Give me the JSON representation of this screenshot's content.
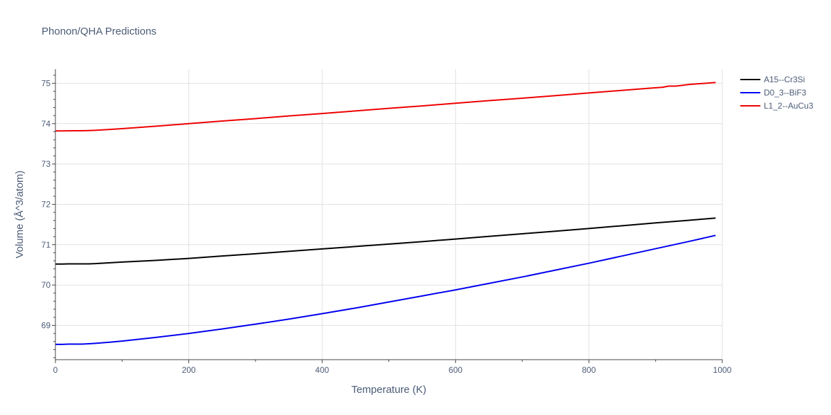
{
  "chart_data": {
    "type": "line",
    "title": "Phonon/QHA Predictions",
    "xlabel": "Temperature (K)",
    "ylabel": "Volume (Å^3/atom)",
    "xlim": [
      0,
      1000
    ],
    "ylim": [
      68.15,
      75.35
    ],
    "x_ticks": [
      0,
      200,
      400,
      600,
      800,
      1000
    ],
    "y_ticks": [
      69,
      70,
      71,
      72,
      73,
      74,
      75
    ],
    "grid": true,
    "legend_position": "top-right",
    "series": [
      {
        "name": "A15--Cr3Si",
        "color": "#000000",
        "x": [
          0,
          10,
          20,
          30,
          40,
          50,
          60,
          80,
          100,
          150,
          200,
          250,
          300,
          350,
          400,
          450,
          500,
          550,
          600,
          650,
          700,
          750,
          800,
          850,
          900,
          950,
          990
        ],
        "y": [
          70.52,
          70.52,
          70.525,
          70.525,
          70.525,
          70.525,
          70.53,
          70.55,
          70.57,
          70.61,
          70.66,
          70.72,
          70.775,
          70.835,
          70.895,
          70.955,
          71.015,
          71.075,
          71.14,
          71.205,
          71.27,
          71.335,
          71.4,
          71.47,
          71.54,
          71.605,
          71.66
        ]
      },
      {
        "name": "D0_3--BiF3",
        "color": "#0000ee",
        "x": [
          0,
          10,
          20,
          30,
          40,
          50,
          60,
          80,
          100,
          150,
          200,
          250,
          300,
          350,
          400,
          450,
          500,
          550,
          600,
          650,
          700,
          750,
          800,
          850,
          900,
          950,
          990
        ],
        "y": [
          68.53,
          68.53,
          68.535,
          68.535,
          68.535,
          68.545,
          68.555,
          68.58,
          68.61,
          68.7,
          68.8,
          68.91,
          69.03,
          69.155,
          69.29,
          69.43,
          69.58,
          69.73,
          69.88,
          70.04,
          70.2,
          70.37,
          70.54,
          70.72,
          70.9,
          71.08,
          71.23
        ]
      },
      {
        "name": "L1_2--AuCu3",
        "color": "#ee0000",
        "x": [
          0,
          10,
          20,
          30,
          40,
          50,
          60,
          80,
          100,
          150,
          200,
          250,
          300,
          350,
          400,
          450,
          500,
          550,
          600,
          650,
          700,
          750,
          800,
          850,
          900,
          910,
          920,
          930,
          940,
          950,
          990
        ],
        "y": [
          73.82,
          73.82,
          73.822,
          73.825,
          73.825,
          73.828,
          73.835,
          73.855,
          73.875,
          73.935,
          74.0,
          74.065,
          74.125,
          74.19,
          74.25,
          74.315,
          74.38,
          74.44,
          74.505,
          74.57,
          74.63,
          74.695,
          74.76,
          74.825,
          74.89,
          74.9,
          74.93,
          74.93,
          74.95,
          74.97,
          75.02
        ]
      }
    ]
  }
}
